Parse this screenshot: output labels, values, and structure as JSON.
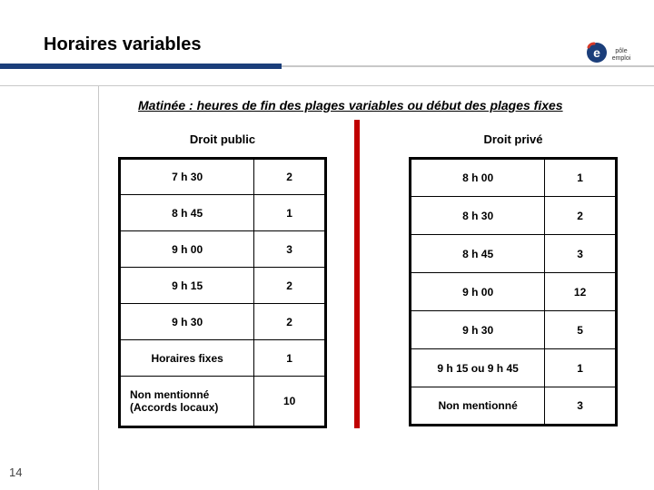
{
  "title": "Horaires variables",
  "subtitle": "Matinée : heures de fin des plages variables ou début des plages fixes",
  "page_number": "14",
  "colors": {
    "title_underline_blue": "#1b3e7a",
    "title_underline_grey": "#c8c8c8",
    "divider_red": "#c00000",
    "table_border": "#000000"
  },
  "logo": {
    "name": "pôle emploi",
    "circle_color": "#1b3e7a",
    "e_color": "#ffffff",
    "accent_color": "#d43a2a",
    "text_color": "#333333"
  },
  "left_table": {
    "title": "Droit public",
    "rows": [
      {
        "label": "7 h 30",
        "value": "2",
        "centered": true
      },
      {
        "label": "8 h 45",
        "value": "1",
        "centered": true
      },
      {
        "label": "9 h 00",
        "value": "3",
        "centered": true
      },
      {
        "label": "9 h 15",
        "value": "2",
        "centered": true
      },
      {
        "label": "9 h 30",
        "value": "2",
        "centered": true
      },
      {
        "label": "Horaires fixes",
        "value": "1",
        "centered": true
      },
      {
        "label": "Non mentionné (Accords locaux)",
        "value": "10",
        "centered": false,
        "tall": true
      }
    ]
  },
  "right_table": {
    "title": "Droit privé",
    "rows": [
      {
        "label": "8 h 00",
        "value": "1"
      },
      {
        "label": "8 h 30",
        "value": "2"
      },
      {
        "label": "8 h 45",
        "value": "3"
      },
      {
        "label": "9 h 00",
        "value": "12"
      },
      {
        "label": "9 h 30",
        "value": "5"
      },
      {
        "label": "9 h 15 ou 9 h 45",
        "value": "1"
      },
      {
        "label": "Non mentionné",
        "value": "3"
      }
    ]
  }
}
